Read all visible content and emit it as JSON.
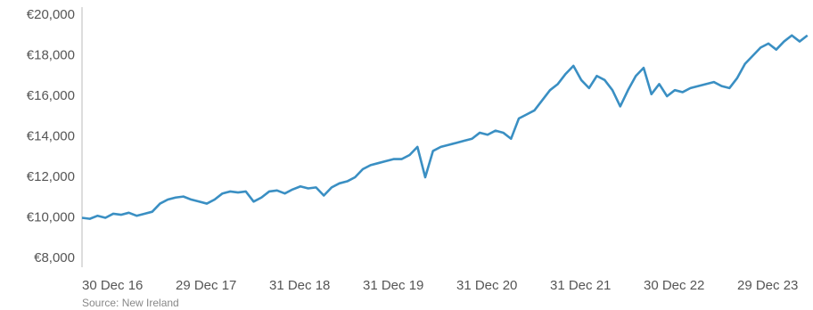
{
  "chart_data": {
    "type": "line",
    "source": "Source: New Ireland",
    "categories": [
      "30 Dec 16",
      null,
      null,
      null,
      null,
      null,
      null,
      null,
      null,
      null,
      null,
      null,
      "29 Dec 17",
      null,
      null,
      null,
      null,
      null,
      null,
      null,
      null,
      null,
      null,
      null,
      "31 Dec 18",
      null,
      null,
      null,
      null,
      null,
      null,
      null,
      null,
      null,
      null,
      null,
      "31 Dec 19",
      null,
      null,
      null,
      null,
      null,
      null,
      null,
      null,
      null,
      null,
      null,
      "31 Dec 20",
      null,
      null,
      null,
      null,
      null,
      null,
      null,
      null,
      null,
      null,
      null,
      "31 Dec 21",
      null,
      null,
      null,
      null,
      null,
      null,
      null,
      null,
      null,
      null,
      null,
      "30 Dec 22",
      null,
      null,
      null,
      null,
      null,
      null,
      null,
      null,
      null,
      null,
      null,
      "29 Dec 23",
      null,
      null,
      null,
      null,
      null,
      null,
      null,
      null,
      null
    ],
    "values": [
      10000,
      9950,
      10100,
      10000,
      10200,
      10150,
      10250,
      10100,
      10200,
      10300,
      10700,
      10900,
      11000,
      11050,
      10900,
      10800,
      10700,
      10900,
      11200,
      11300,
      11250,
      11300,
      10800,
      11000,
      11300,
      11350,
      11200,
      11400,
      11550,
      11450,
      11500,
      11100,
      11500,
      11700,
      11800,
      12000,
      12400,
      12600,
      12700,
      12800,
      12900,
      12900,
      13100,
      13500,
      12000,
      13300,
      13500,
      13600,
      13700,
      13800,
      13900,
      14200,
      14100,
      14300,
      14200,
      13900,
      14900,
      15100,
      15300,
      15800,
      16300,
      16600,
      17100,
      17500,
      16800,
      16400,
      17000,
      16800,
      16300,
      15500,
      16300,
      17000,
      17400,
      16100,
      16600,
      16000,
      16300,
      16200,
      16400,
      16500,
      16600,
      16700,
      16500,
      16400,
      16900,
      17600,
      18000,
      18400,
      18600,
      18300,
      18700,
      19000,
      18700,
      19000
    ],
    "color": "#3a8fc3",
    "ylim": [
      8000,
      20000
    ],
    "yticks": [
      {
        "value": 8000,
        "label": "€8,000"
      },
      {
        "value": 10000,
        "label": "€10,000"
      },
      {
        "value": 12000,
        "label": "€12,000"
      },
      {
        "value": 14000,
        "label": "€14,000"
      },
      {
        "value": 16000,
        "label": "€16,000"
      },
      {
        "value": 18000,
        "label": "€18,000"
      },
      {
        "value": 20000,
        "label": "€20,000"
      }
    ]
  }
}
